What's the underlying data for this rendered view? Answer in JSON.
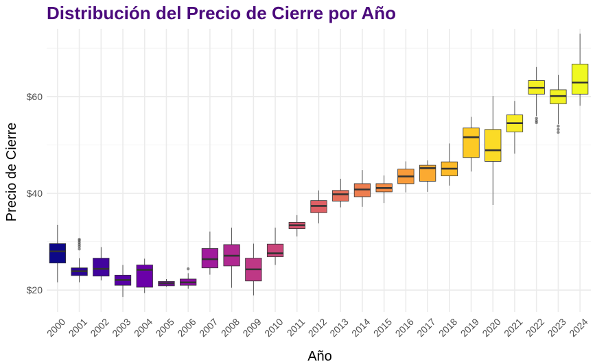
{
  "chart_data": {
    "type": "boxplot",
    "title": "Distribución del Precio de Cierre por Año",
    "xlabel": "Año",
    "ylabel": "Precio de Cierre",
    "ylim": [
      15.5,
      74
    ],
    "yticks": [
      20,
      40,
      60
    ],
    "ytick_labels": [
      "$20",
      "$40",
      "$60"
    ],
    "grid": true,
    "legend": "none",
    "categories": [
      "2000",
      "2001",
      "2002",
      "2003",
      "2004",
      "2005",
      "2006",
      "2007",
      "2008",
      "2009",
      "2010",
      "2011",
      "2012",
      "2013",
      "2014",
      "2015",
      "2016",
      "2017",
      "2018",
      "2019",
      "2020",
      "2021",
      "2022",
      "2023",
      "2024"
    ],
    "boxes": [
      {
        "whisker_low": 21.6,
        "q1": 25.6,
        "median": 28.0,
        "q3": 29.6,
        "whisker_high": 33.5,
        "outliers": [],
        "color": "#0D0887"
      },
      {
        "whisker_low": 21.6,
        "q1": 23.0,
        "median": 23.9,
        "q3": 24.6,
        "whisker_high": 26.6,
        "outliers": [
          28.5,
          29.0,
          29.4,
          29.8,
          30.2,
          30.5
        ],
        "color": "#2A0593"
      },
      {
        "whisker_low": 22.0,
        "q1": 22.9,
        "median": 24.4,
        "q3": 26.6,
        "whisker_high": 28.9,
        "outliers": [],
        "color": "#41049D"
      },
      {
        "whisker_low": 18.6,
        "q1": 21.0,
        "median": 22.1,
        "q3": 23.1,
        "whisker_high": 25.2,
        "outliers": [],
        "color": "#5601A4"
      },
      {
        "whisker_low": 19.4,
        "q1": 20.6,
        "median": 24.2,
        "q3": 25.2,
        "whisker_high": 26.5,
        "outliers": [],
        "color": "#6A00A8"
      },
      {
        "whisker_low": 20.7,
        "q1": 20.9,
        "median": 21.4,
        "q3": 21.8,
        "whisker_high": 22.3,
        "outliers": [],
        "color": "#7E03A8"
      },
      {
        "whisker_low": 20.3,
        "q1": 21.0,
        "median": 21.6,
        "q3": 22.3,
        "whisker_high": 23.5,
        "outliers": [
          24.4
        ],
        "color": "#8F0DA4"
      },
      {
        "whisker_low": 23.2,
        "q1": 24.6,
        "median": 26.4,
        "q3": 28.6,
        "whisker_high": 32.1,
        "outliers": [],
        "color": "#A01A9C"
      },
      {
        "whisker_low": 20.5,
        "q1": 25.0,
        "median": 27.1,
        "q3": 29.4,
        "whisker_high": 32.9,
        "outliers": [],
        "color": "#B02991"
      },
      {
        "whisker_low": 18.9,
        "q1": 21.9,
        "median": 24.3,
        "q3": 26.6,
        "whisker_high": 29.6,
        "outliers": [],
        "color": "#BE3885"
      },
      {
        "whisker_low": 25.2,
        "q1": 26.9,
        "median": 27.6,
        "q3": 29.5,
        "whisker_high": 32.9,
        "outliers": [],
        "color": "#CA457A"
      },
      {
        "whisker_low": 31.1,
        "q1": 32.7,
        "median": 33.4,
        "q3": 34.0,
        "whisker_high": 35.5,
        "outliers": [],
        "color": "#D5536F"
      },
      {
        "whisker_low": 33.8,
        "q1": 36.0,
        "median": 37.4,
        "q3": 38.5,
        "whisker_high": 40.6,
        "outliers": [],
        "color": "#DE6065"
      },
      {
        "whisker_low": 37.1,
        "q1": 38.4,
        "median": 39.8,
        "q3": 40.6,
        "whisker_high": 43.0,
        "outliers": [],
        "color": "#E76F5A"
      },
      {
        "whisker_low": 37.2,
        "q1": 39.3,
        "median": 40.8,
        "q3": 42.0,
        "whisker_high": 44.8,
        "outliers": [],
        "color": "#EE7E4F"
      },
      {
        "whisker_low": 38.0,
        "q1": 40.3,
        "median": 41.1,
        "q3": 42.0,
        "whisker_high": 43.7,
        "outliers": [],
        "color": "#F48C45"
      },
      {
        "whisker_low": 40.2,
        "q1": 42.0,
        "median": 43.5,
        "q3": 45.0,
        "whisker_high": 46.6,
        "outliers": [],
        "color": "#F89B3A"
      },
      {
        "whisker_low": 40.3,
        "q1": 42.5,
        "median": 45.2,
        "q3": 45.8,
        "whisker_high": 46.8,
        "outliers": [],
        "color": "#FBAA31"
      },
      {
        "whisker_low": 41.6,
        "q1": 43.6,
        "median": 45.1,
        "q3": 46.5,
        "whisker_high": 50.3,
        "outliers": [],
        "color": "#FDBA28"
      },
      {
        "whisker_low": 44.5,
        "q1": 47.4,
        "median": 51.6,
        "q3": 53.5,
        "whisker_high": 55.8,
        "outliers": [],
        "color": "#FDCA25"
      },
      {
        "whisker_low": 37.6,
        "q1": 46.6,
        "median": 48.9,
        "q3": 53.2,
        "whisker_high": 60.1,
        "outliers": [],
        "color": "#FBDB26"
      },
      {
        "whisker_low": 48.2,
        "q1": 52.7,
        "median": 54.5,
        "q3": 56.2,
        "whisker_high": 59.1,
        "outliers": [],
        "color": "#F7EB26"
      },
      {
        "whisker_low": 56.0,
        "q1": 60.5,
        "median": 61.8,
        "q3": 63.3,
        "whisker_high": 66.1,
        "outliers": [
          54.6,
          55.0,
          55.5
        ],
        "color": "#F4F024"
      },
      {
        "whisker_low": 54.3,
        "q1": 58.5,
        "median": 60.1,
        "q3": 61.4,
        "whisker_high": 64.5,
        "outliers": [
          52.6,
          53.2,
          53.9
        ],
        "color": "#F2F223"
      },
      {
        "whisker_low": 58.1,
        "q1": 60.5,
        "median": 62.9,
        "q3": 66.7,
        "whisker_high": 73.0,
        "outliers": [],
        "color": "#F0F921"
      }
    ]
  }
}
